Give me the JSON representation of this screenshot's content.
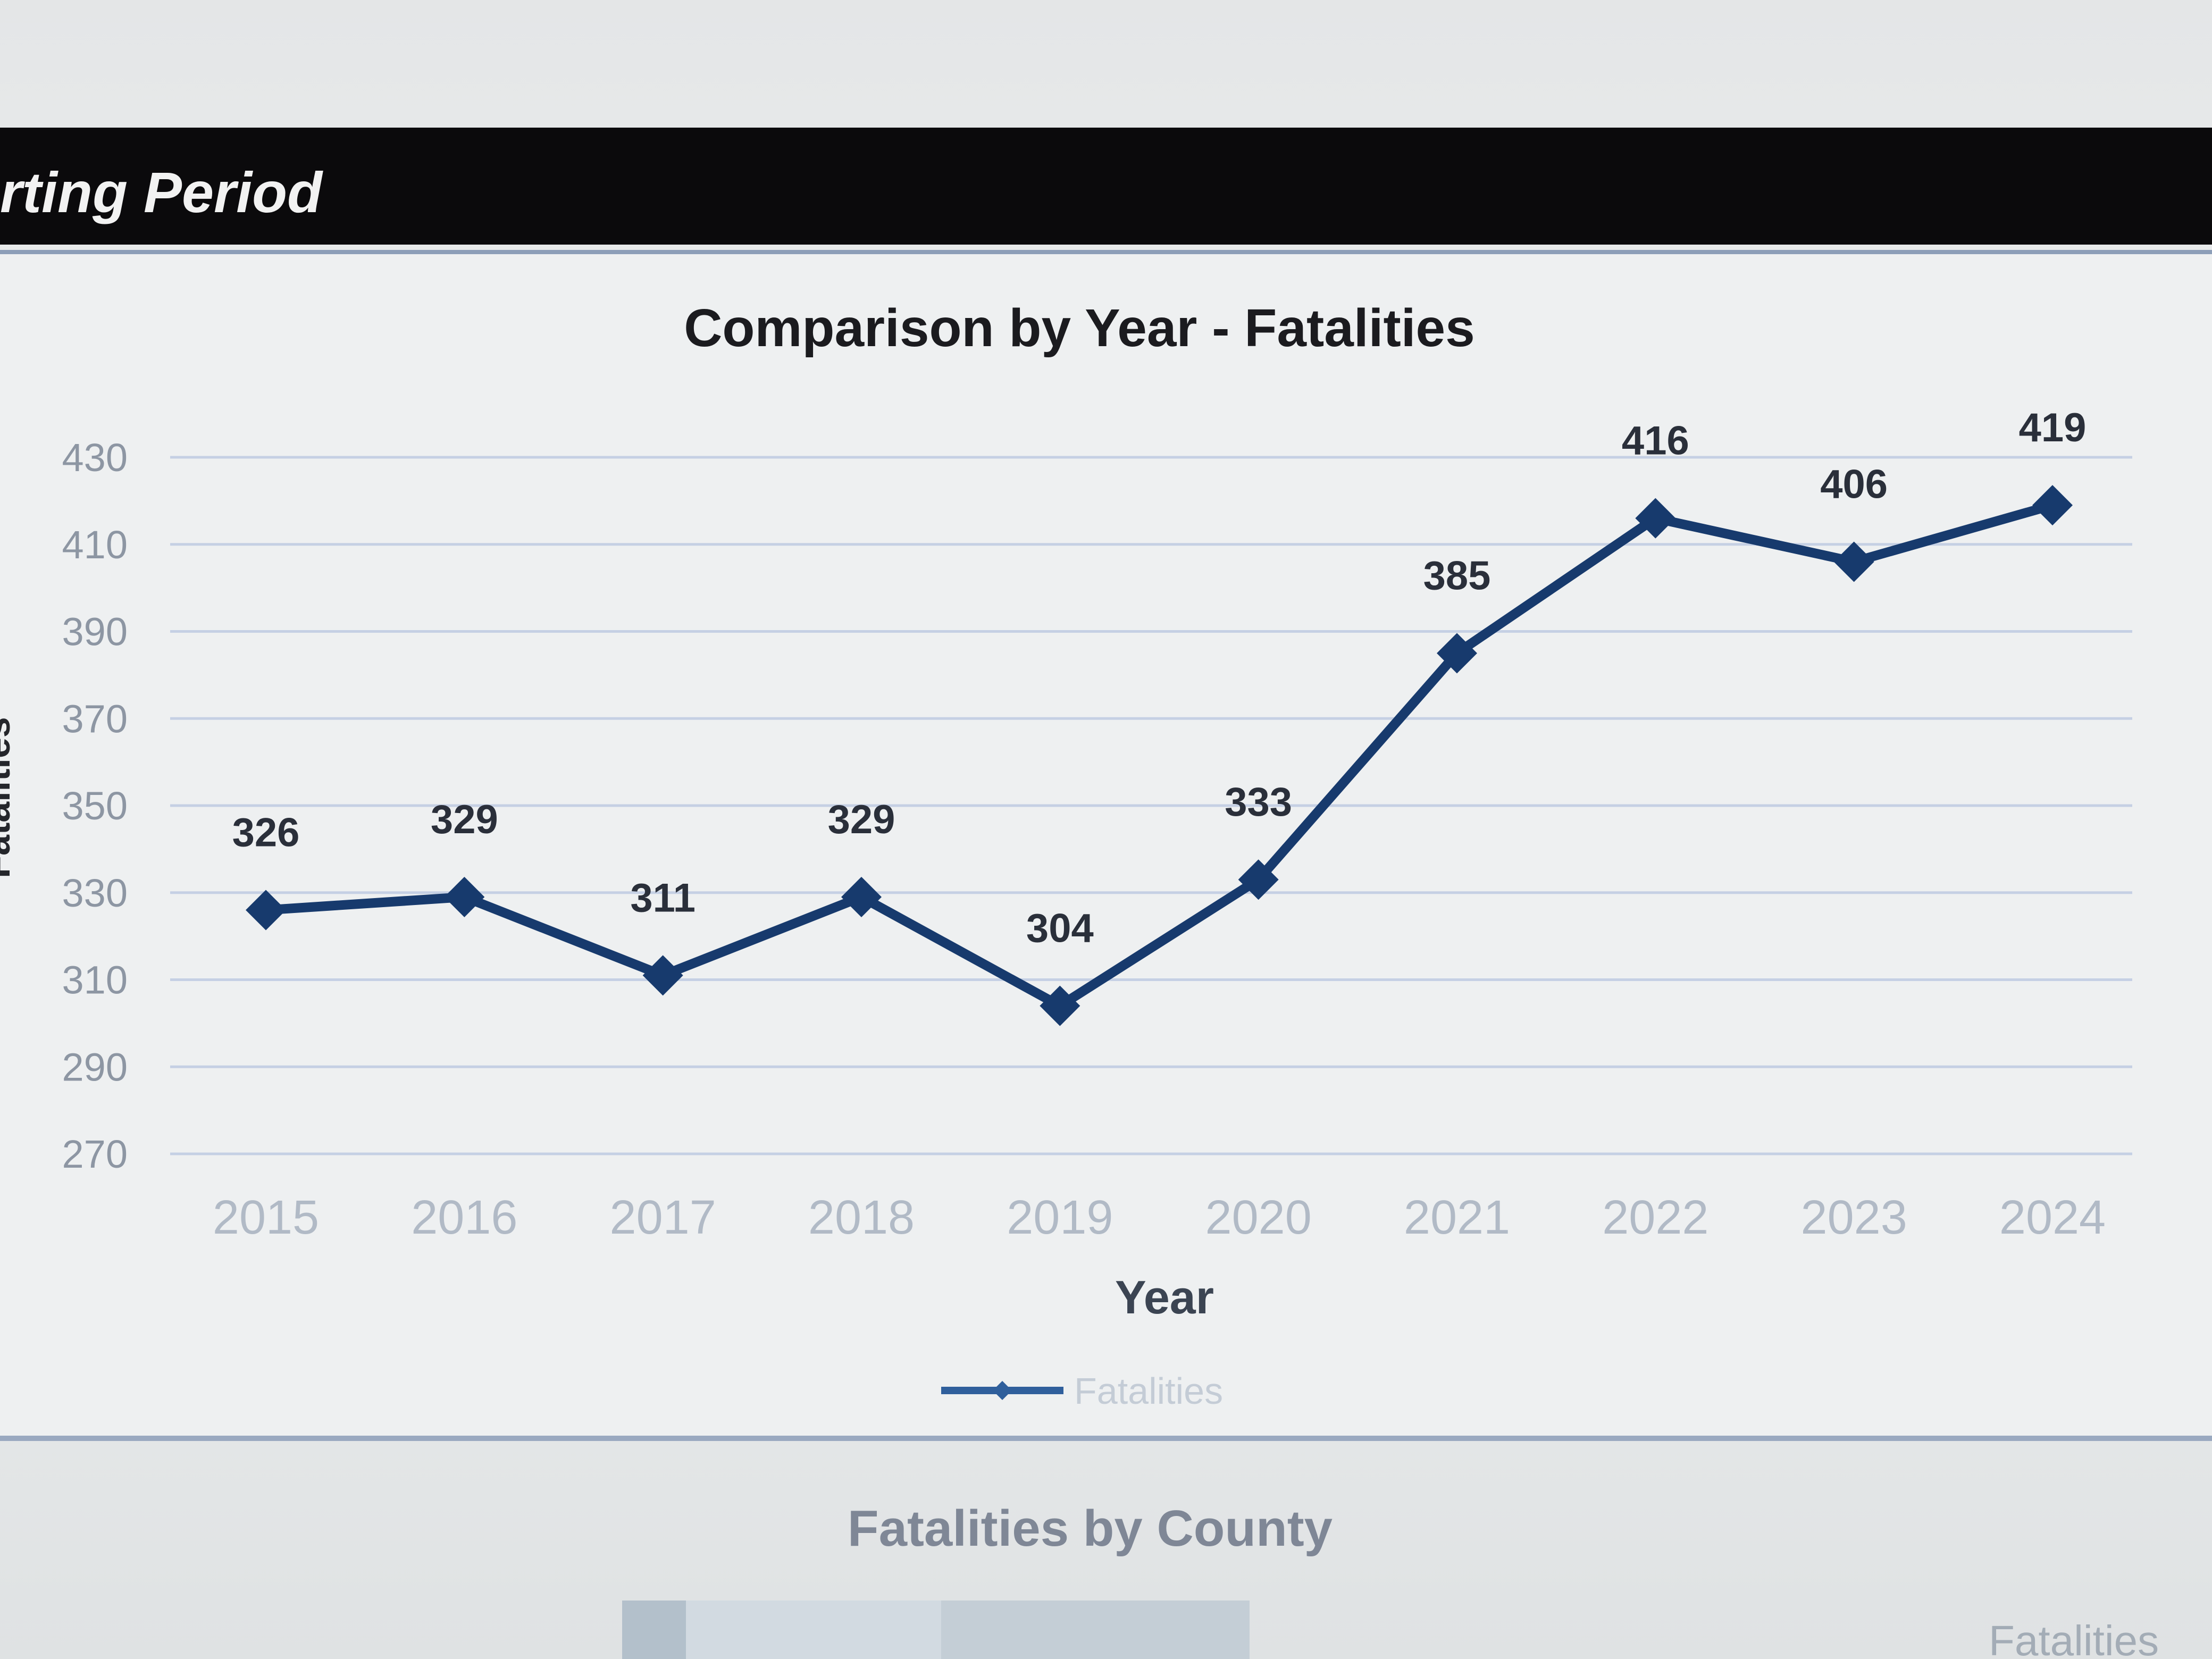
{
  "header": {
    "title": "rting Period"
  },
  "chart_data": {
    "type": "line",
    "title": "Comparison by Year - Fatalities",
    "xlabel": "Year",
    "ylabel": "Fatalities",
    "categories": [
      "2015",
      "2016",
      "2017",
      "2018",
      "2019",
      "2020",
      "2021",
      "2022",
      "2023",
      "2024"
    ],
    "yticks": [
      "430",
      "410",
      "390",
      "370",
      "350",
      "330",
      "310",
      "290",
      "270"
    ],
    "ylim": [
      270,
      430
    ],
    "grid": true,
    "legend_position": "bottom",
    "series": [
      {
        "name": "Fatalities",
        "values": [
          326,
          329,
          311,
          329,
          304,
          333,
          385,
          416,
          406,
          419
        ],
        "color": "#173a6d",
        "marker": "diamond"
      }
    ]
  },
  "section": {
    "title": "Fatalities by County",
    "corner_label": "Fatalities"
  },
  "colors": {
    "line": "#173a6d",
    "gridline": "#c5d0e4",
    "tick_text": "#8d96a3",
    "header_bg": "#0b0a0c"
  }
}
